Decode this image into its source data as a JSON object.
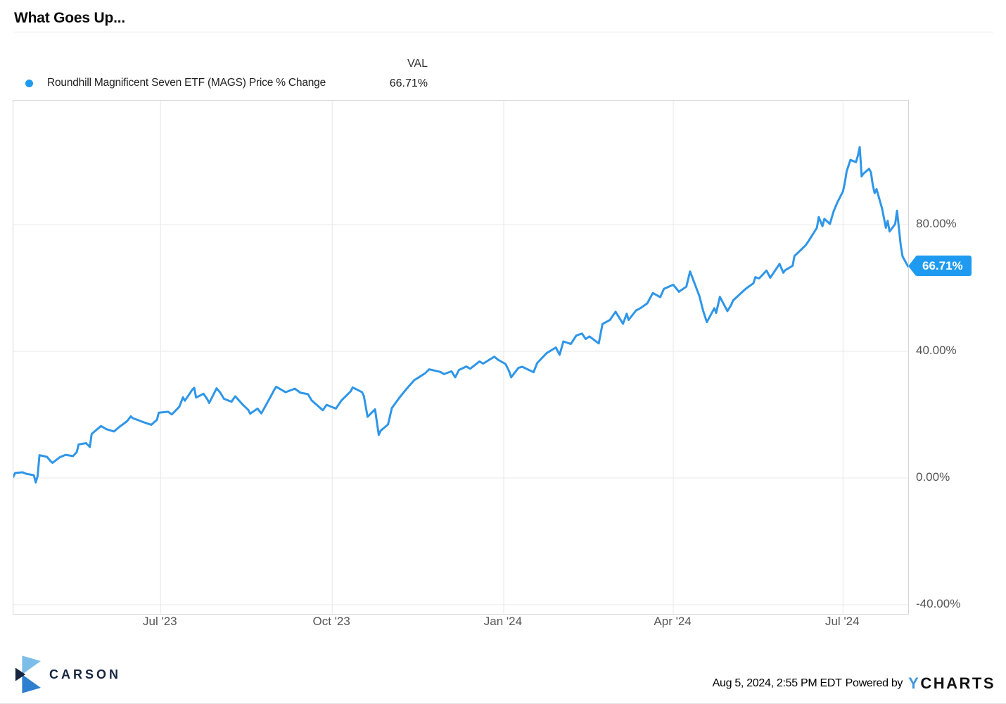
{
  "page": {
    "title": "What Goes Up..."
  },
  "legend": {
    "val_header": "VAL",
    "series_label": "Roundhill Magnificent Seven ETF (MAGS) Price % Change",
    "series_value": "66.71%"
  },
  "colors": {
    "accent_badge": "#1e9bf0",
    "legend_dot": "#1e9bf0",
    "line": "#2f96e8",
    "grid": "#e8e8e8",
    "plot_border": "#d6d6d6",
    "carson_navy": "#16263f",
    "ycharts_blue": "#3f96dc"
  },
  "chart_data": {
    "type": "line",
    "title": "What Goes Up...",
    "x_domain": [
      "2023-04-13",
      "2024-08-05"
    ],
    "y_range_pct": [
      -43.4,
      119.1
    ],
    "grid": true,
    "legend_position": "top-left",
    "y_axis_side": "right",
    "x_ticks": [
      {
        "date": "2023-07-01",
        "label": "Jul '23"
      },
      {
        "date": "2023-10-01",
        "label": "Oct '23"
      },
      {
        "date": "2024-01-01",
        "label": "Jan '24"
      },
      {
        "date": "2024-04-01",
        "label": "Apr '24"
      },
      {
        "date": "2024-07-01",
        "label": "Jul '24"
      }
    ],
    "y_ticks": [
      {
        "value": 80,
        "label": "80.00%"
      },
      {
        "value": 40,
        "label": "40.00%"
      },
      {
        "value": 0,
        "label": "0.00%"
      },
      {
        "value": -40,
        "label": "-40.00%"
      }
    ],
    "end_label": {
      "value": 66.71,
      "label": "66.71%"
    },
    "series": [
      {
        "name": "Roundhill Magnificent Seven ETF (MAGS) Price % Change",
        "color": "#2f96e8",
        "last_value_label": "66.71%",
        "points": [
          [
            "2023-04-13",
            0.4
          ],
          [
            "2023-04-14",
            1.6
          ],
          [
            "2023-04-18",
            1.8
          ],
          [
            "2023-04-20",
            1.3
          ],
          [
            "2023-04-24",
            0.9
          ],
          [
            "2023-04-25",
            -1.4
          ],
          [
            "2023-04-26",
            0.7
          ],
          [
            "2023-04-27",
            7.2
          ],
          [
            "2023-05-01",
            6.7
          ],
          [
            "2023-05-03",
            5.3
          ],
          [
            "2023-05-04",
            4.8
          ],
          [
            "2023-05-08",
            6.6
          ],
          [
            "2023-05-11",
            7.3
          ],
          [
            "2023-05-15",
            6.9
          ],
          [
            "2023-05-17",
            8.2
          ],
          [
            "2023-05-18",
            10.6
          ],
          [
            "2023-05-22",
            11.0
          ],
          [
            "2023-05-24",
            9.8
          ],
          [
            "2023-05-25",
            13.9
          ],
          [
            "2023-05-30",
            16.4
          ],
          [
            "2023-06-02",
            15.4
          ],
          [
            "2023-06-06",
            14.7
          ],
          [
            "2023-06-09",
            16.2
          ],
          [
            "2023-06-13",
            17.9
          ],
          [
            "2023-06-15",
            19.5
          ],
          [
            "2023-06-16",
            18.9
          ],
          [
            "2023-06-21",
            17.8
          ],
          [
            "2023-06-26",
            16.8
          ],
          [
            "2023-06-29",
            18.4
          ],
          [
            "2023-06-30",
            20.6
          ],
          [
            "2023-07-05",
            20.9
          ],
          [
            "2023-07-07",
            20.1
          ],
          [
            "2023-07-11",
            22.5
          ],
          [
            "2023-07-13",
            25.5
          ],
          [
            "2023-07-14",
            24.4
          ],
          [
            "2023-07-18",
            27.9
          ],
          [
            "2023-07-19",
            28.5
          ],
          [
            "2023-07-20",
            25.4
          ],
          [
            "2023-07-24",
            26.6
          ],
          [
            "2023-07-26",
            24.9
          ],
          [
            "2023-07-27",
            23.7
          ],
          [
            "2023-07-31",
            28.3
          ],
          [
            "2023-08-02",
            26.9
          ],
          [
            "2023-08-04",
            25.0
          ],
          [
            "2023-08-08",
            24.1
          ],
          [
            "2023-08-10",
            25.8
          ],
          [
            "2023-08-14",
            23.2
          ],
          [
            "2023-08-17",
            21.5
          ],
          [
            "2023-08-18",
            20.3
          ],
          [
            "2023-08-22",
            21.9
          ],
          [
            "2023-08-24",
            20.4
          ],
          [
            "2023-08-29",
            25.7
          ],
          [
            "2023-08-31",
            27.9
          ],
          [
            "2023-09-01",
            28.8
          ],
          [
            "2023-09-06",
            27.1
          ],
          [
            "2023-09-11",
            28.2
          ],
          [
            "2023-09-14",
            26.9
          ],
          [
            "2023-09-18",
            26.5
          ],
          [
            "2023-09-20",
            24.5
          ],
          [
            "2023-09-26",
            21.4
          ],
          [
            "2023-09-28",
            23.1
          ],
          [
            "2023-10-03",
            21.9
          ],
          [
            "2023-10-06",
            24.5
          ],
          [
            "2023-10-11",
            27.4
          ],
          [
            "2023-10-12",
            28.6
          ],
          [
            "2023-10-17",
            27.1
          ],
          [
            "2023-10-18",
            25.9
          ],
          [
            "2023-10-20",
            19.3
          ],
          [
            "2023-10-24",
            21.7
          ],
          [
            "2023-10-26",
            13.6
          ],
          [
            "2023-10-27",
            14.9
          ],
          [
            "2023-10-31",
            16.9
          ],
          [
            "2023-11-02",
            22.1
          ],
          [
            "2023-11-06",
            25.3
          ],
          [
            "2023-11-10",
            28.2
          ],
          [
            "2023-11-14",
            30.9
          ],
          [
            "2023-11-16",
            31.6
          ],
          [
            "2023-11-20",
            33.1
          ],
          [
            "2023-11-22",
            34.3
          ],
          [
            "2023-11-28",
            33.5
          ],
          [
            "2023-11-30",
            32.8
          ],
          [
            "2023-12-04",
            33.7
          ],
          [
            "2023-12-06",
            31.8
          ],
          [
            "2023-12-08",
            34.1
          ],
          [
            "2023-12-12",
            35.2
          ],
          [
            "2023-12-14",
            34.5
          ],
          [
            "2023-12-19",
            36.8
          ],
          [
            "2023-12-21",
            36.1
          ],
          [
            "2023-12-27",
            38.3
          ],
          [
            "2023-12-29",
            37.3
          ],
          [
            "2024-01-02",
            36.0
          ],
          [
            "2024-01-04",
            33.6
          ],
          [
            "2024-01-05",
            31.8
          ],
          [
            "2024-01-09",
            34.8
          ],
          [
            "2024-01-11",
            35.1
          ],
          [
            "2024-01-17",
            33.4
          ],
          [
            "2024-01-19",
            36.3
          ],
          [
            "2024-01-24",
            39.4
          ],
          [
            "2024-01-29",
            41.2
          ],
          [
            "2024-01-31",
            38.9
          ],
          [
            "2024-02-02",
            43.1
          ],
          [
            "2024-02-06",
            42.3
          ],
          [
            "2024-02-09",
            45.0
          ],
          [
            "2024-02-12",
            45.6
          ],
          [
            "2024-02-14",
            43.9
          ],
          [
            "2024-02-16",
            44.7
          ],
          [
            "2024-02-21",
            42.5
          ],
          [
            "2024-02-23",
            48.6
          ],
          [
            "2024-02-27",
            49.9
          ],
          [
            "2024-03-01",
            52.5
          ],
          [
            "2024-03-05",
            48.7
          ],
          [
            "2024-03-07",
            51.9
          ],
          [
            "2024-03-08",
            49.9
          ],
          [
            "2024-03-12",
            52.9
          ],
          [
            "2024-03-14",
            53.5
          ],
          [
            "2024-03-18",
            55.1
          ],
          [
            "2024-03-21",
            58.4
          ],
          [
            "2024-03-25",
            57.1
          ],
          [
            "2024-03-27",
            59.7
          ],
          [
            "2024-04-01",
            61.0
          ],
          [
            "2024-04-04",
            58.8
          ],
          [
            "2024-04-08",
            60.4
          ],
          [
            "2024-04-10",
            65.2
          ],
          [
            "2024-04-15",
            57.4
          ],
          [
            "2024-04-17",
            52.8
          ],
          [
            "2024-04-19",
            49.2
          ],
          [
            "2024-04-23",
            53.6
          ],
          [
            "2024-04-24",
            52.1
          ],
          [
            "2024-04-26",
            57.2
          ],
          [
            "2024-04-30",
            52.7
          ],
          [
            "2024-05-02",
            54.6
          ],
          [
            "2024-05-03",
            56.0
          ],
          [
            "2024-05-07",
            58.2
          ],
          [
            "2024-05-10",
            59.8
          ],
          [
            "2024-05-14",
            61.5
          ],
          [
            "2024-05-15",
            63.4
          ],
          [
            "2024-05-17",
            63.0
          ],
          [
            "2024-05-21",
            65.5
          ],
          [
            "2024-05-23",
            63.2
          ],
          [
            "2024-05-28",
            67.6
          ],
          [
            "2024-05-30",
            64.8
          ],
          [
            "2024-05-31",
            65.6
          ],
          [
            "2024-06-04",
            67.0
          ],
          [
            "2024-06-05",
            70.1
          ],
          [
            "2024-06-07",
            71.2
          ],
          [
            "2024-06-11",
            73.5
          ],
          [
            "2024-06-13",
            75.2
          ],
          [
            "2024-06-17",
            79.0
          ],
          [
            "2024-06-18",
            82.4
          ],
          [
            "2024-06-20",
            79.5
          ],
          [
            "2024-06-21",
            81.8
          ],
          [
            "2024-06-24",
            80.2
          ],
          [
            "2024-06-26",
            84.2
          ],
          [
            "2024-06-28",
            87.0
          ],
          [
            "2024-07-01",
            90.5
          ],
          [
            "2024-07-02",
            93.2
          ],
          [
            "2024-07-03",
            96.8
          ],
          [
            "2024-07-05",
            100.4
          ],
          [
            "2024-07-08",
            99.7
          ],
          [
            "2024-07-09",
            101.8
          ],
          [
            "2024-07-10",
            104.5
          ],
          [
            "2024-07-11",
            95.2
          ],
          [
            "2024-07-12",
            96.1
          ],
          [
            "2024-07-15",
            97.6
          ],
          [
            "2024-07-16",
            96.5
          ],
          [
            "2024-07-17",
            92.4
          ],
          [
            "2024-07-18",
            89.9
          ],
          [
            "2024-07-19",
            91.2
          ],
          [
            "2024-07-22",
            85.0
          ],
          [
            "2024-07-24",
            79.0
          ],
          [
            "2024-07-25",
            81.2
          ],
          [
            "2024-07-26",
            77.8
          ],
          [
            "2024-07-29",
            80.2
          ],
          [
            "2024-07-30",
            84.4
          ],
          [
            "2024-08-01",
            73.4
          ],
          [
            "2024-08-02",
            69.9
          ],
          [
            "2024-08-05",
            66.71
          ]
        ]
      }
    ]
  },
  "footer": {
    "brand": "CARSON",
    "timestamp": "Aug 5, 2024, 2:55 PM EDT",
    "powered_by": "Powered by",
    "ycharts_y": "Y",
    "ycharts_rest": "CHARTS"
  }
}
